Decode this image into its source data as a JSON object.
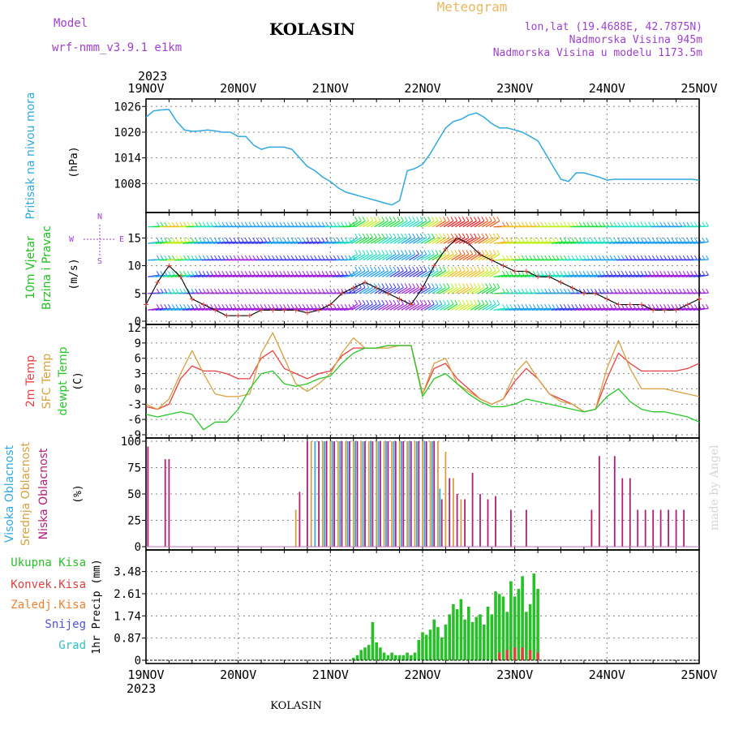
{
  "header": {
    "model_label": "Model",
    "model_name": "wrf-nmm_v3.9.1  e1km",
    "station": "KOLASIN",
    "meteogram": "Meteogram",
    "lonlat": "lon,lat (19.4688E, 42.7875N)",
    "elev": "Nadmorska Visina 945m",
    "elev_model": "Nadmorska Visina u modelu 1173.5m",
    "year": "2023",
    "footer_station": "KOLASIN",
    "watermark": "made by Angel"
  },
  "time_axis": {
    "labels": [
      "19NOV",
      "20NOV",
      "21NOV",
      "22NOV",
      "23NOV",
      "24NOV",
      "25NOV"
    ],
    "hours_range": [
      0,
      144
    ]
  },
  "colors": {
    "pressure": "#30a8e0",
    "t2m": "#e84040",
    "tsfc": "#d8a040",
    "dewpt": "#28c828",
    "low_cloud": "#b0207a",
    "mid_cloud": "#d8a040",
    "high_cloud": "#30a8e0",
    "total_precip": "#28c028",
    "conv_precip": "#e04040",
    "frozen_precip": "#f08030",
    "snow": "#5050e0",
    "graupel": "#30c0c0",
    "wind_label": "#20c020",
    "wind_dir_label": "#a040d0"
  },
  "chart_data": [
    {
      "type": "line",
      "panel": "pressure",
      "ylabel": "Pritisak na nivou mora",
      "yunit": "(hPa)",
      "yticks": [
        "1026",
        "1020",
        "1014",
        "1008"
      ],
      "ylim": [
        1002,
        1027
      ],
      "grid": true,
      "series": [
        {
          "x": [
            0,
            2,
            4,
            6,
            8,
            10,
            12,
            14,
            16,
            18,
            20,
            22,
            24,
            26,
            28,
            30,
            32,
            34,
            36,
            38,
            40,
            42,
            44,
            46,
            48,
            50,
            52,
            54,
            56,
            58,
            60,
            62,
            64,
            66,
            68,
            70,
            72,
            74,
            76,
            78,
            80,
            82,
            84,
            86,
            88,
            90,
            92,
            94,
            96,
            98,
            100,
            102,
            104,
            106,
            108,
            110,
            112,
            114,
            116,
            118,
            120,
            122,
            124,
            126,
            128,
            130,
            132,
            134,
            136,
            138,
            140,
            142,
            144
          ],
          "values": [
            1023.5,
            1025,
            1025.2,
            1025.3,
            1022.5,
            1020.5,
            1020.2,
            1020.3,
            1020.5,
            1020.3,
            1020,
            1020,
            1019,
            1019,
            1017,
            1016,
            1016.5,
            1016.5,
            1016.5,
            1016,
            1014,
            1012,
            1011,
            1009.5,
            1008.5,
            1007,
            1006,
            1005.5,
            1005,
            1004.5,
            1004,
            1003.5,
            1003,
            1004,
            1011,
            1011.5,
            1012.5,
            1015,
            1018,
            1021,
            1022.5,
            1023,
            1024,
            1024.5,
            1023.5,
            1022,
            1021,
            1021,
            1020.5,
            1020,
            1019,
            1018,
            1015,
            1012,
            1009,
            1008.5,
            1010.5,
            1010.5,
            1010,
            1009.5,
            1008.8,
            1009,
            1009,
            1009,
            1009,
            1009,
            1009,
            1009,
            1009,
            1009,
            1009,
            1009,
            1008.8
          ]
        }
      ]
    },
    {
      "type": "line",
      "panel": "wind",
      "ylabel": "10m Vjetar",
      "ylabel2": "Brzina i Pravac",
      "yunit": "(m/s)",
      "yticks": [
        "15",
        "10",
        "5",
        "0"
      ],
      "ylim": [
        0,
        19
      ],
      "grid": true,
      "direction_labels": [
        "N",
        "E",
        "W",
        "S"
      ],
      "series": [
        {
          "name": "wind",
          "x": [
            0,
            3,
            6,
            9,
            12,
            15,
            18,
            21,
            24,
            27,
            30,
            33,
            36,
            39,
            42,
            45,
            48,
            51,
            54,
            57,
            60,
            63,
            66,
            69,
            72,
            75,
            78,
            81,
            84,
            87,
            90,
            93,
            96,
            99,
            102,
            105,
            108,
            111,
            114,
            117,
            120,
            123,
            126,
            129,
            132,
            135,
            138,
            141,
            144
          ],
          "values": [
            3,
            7,
            10,
            8,
            4,
            3,
            2,
            1,
            1,
            1,
            2,
            2,
            2,
            2,
            1.5,
            2,
            3,
            5,
            6,
            7,
            6,
            5,
            4,
            3,
            6,
            10,
            13,
            15,
            14,
            12,
            11,
            10,
            9,
            9,
            8,
            8,
            7,
            6,
            5,
            5,
            4,
            3,
            3,
            3,
            2,
            2,
            2,
            3,
            4
          ]
        }
      ]
    },
    {
      "type": "line",
      "panel": "temperature",
      "ylabel_lines": [
        "2m Temp",
        "SFC Temp",
        "dewpt Temp"
      ],
      "yunit": "(C)",
      "yticks": [
        "12",
        "9",
        "6",
        "3",
        "0",
        "-3",
        "-6",
        "-9"
      ],
      "ylim": [
        -9,
        12
      ],
      "grid": true,
      "series": [
        {
          "name": "2m Temp",
          "x": [
            0,
            3,
            6,
            9,
            12,
            15,
            18,
            21,
            24,
            27,
            30,
            33,
            36,
            39,
            42,
            45,
            48,
            51,
            54,
            57,
            60,
            63,
            66,
            69,
            72,
            75,
            78,
            81,
            84,
            87,
            90,
            93,
            96,
            99,
            102,
            105,
            108,
            111,
            114,
            117,
            120,
            123,
            126,
            129,
            132,
            135,
            138,
            141,
            144
          ],
          "values": [
            -3.5,
            -4,
            -3,
            2,
            4.5,
            3.5,
            3.5,
            3,
            2,
            2,
            6,
            7.5,
            4,
            3,
            2,
            3,
            3.5,
            6.5,
            8,
            8,
            8,
            8.5,
            8.5,
            8.5,
            -1,
            4,
            5,
            2,
            0,
            -2,
            -3,
            -2,
            1.5,
            4,
            2,
            -1,
            -2,
            -3,
            -4.5,
            -4,
            2,
            7,
            5,
            3.5,
            3.5,
            3.5,
            3.5,
            4,
            5
          ]
        },
        {
          "name": "SFC Temp",
          "x": [
            0,
            3,
            6,
            9,
            12,
            15,
            18,
            21,
            24,
            27,
            30,
            33,
            36,
            39,
            42,
            45,
            48,
            51,
            54,
            57,
            60,
            63,
            66,
            69,
            72,
            75,
            78,
            81,
            84,
            87,
            90,
            93,
            96,
            99,
            102,
            105,
            108,
            111,
            114,
            117,
            120,
            123,
            126,
            129,
            132,
            135,
            138,
            141,
            144
          ],
          "values": [
            -3,
            -4,
            -2,
            3,
            7.5,
            3,
            -1,
            -1.5,
            -1.5,
            -1,
            7,
            11,
            6,
            1,
            -0.5,
            1,
            3,
            7,
            10,
            8,
            8,
            8,
            8.5,
            8.5,
            -1,
            5,
            6,
            1,
            -0.5,
            -2,
            -3,
            -2,
            3,
            5.5,
            2,
            -1,
            -2.5,
            -3,
            -4.5,
            -4,
            4,
            9.5,
            4,
            0,
            0,
            0,
            -0.5,
            -1,
            -1.5
          ]
        },
        {
          "name": "dewpt Temp",
          "x": [
            0,
            3,
            6,
            9,
            12,
            15,
            18,
            21,
            24,
            27,
            30,
            33,
            36,
            39,
            42,
            45,
            48,
            51,
            54,
            57,
            60,
            63,
            66,
            69,
            72,
            75,
            78,
            81,
            84,
            87,
            90,
            93,
            96,
            99,
            102,
            105,
            108,
            111,
            114,
            117,
            120,
            123,
            126,
            129,
            132,
            135,
            138,
            141,
            144
          ],
          "values": [
            -5,
            -5.5,
            -5,
            -4.5,
            -5,
            -8,
            -6.5,
            -6.5,
            -4,
            0,
            3,
            3.5,
            1,
            0.5,
            1,
            2,
            2.5,
            5,
            7,
            8,
            8,
            8.5,
            8.5,
            8.5,
            -1.5,
            2,
            3,
            1,
            -1,
            -2.5,
            -3.5,
            -3.5,
            -3,
            -2,
            -2.5,
            -3,
            -3.5,
            -4,
            -4.5,
            -4,
            -1.5,
            0,
            -2.5,
            -4,
            -4.5,
            -4.5,
            -5,
            -5.5,
            -6.5
          ]
        }
      ]
    },
    {
      "type": "bar",
      "panel": "clouds",
      "ylabel_lines": [
        "Visoka Oblacnost",
        "Srednja Oblacnost",
        "Niska Oblacnost"
      ],
      "yunit": "(%)",
      "yticks": [
        "100",
        "75",
        "50",
        "25",
        "0"
      ],
      "ylim": [
        0,
        100
      ],
      "grid": true,
      "series": [
        {
          "name": "Niska Oblacnost",
          "x": [
            0.5,
            5,
            6,
            40,
            42,
            45,
            47,
            49,
            51,
            53,
            55,
            57,
            59,
            61,
            63,
            65,
            67,
            69,
            71,
            73,
            75,
            77,
            79,
            81,
            83,
            85,
            87,
            89,
            91,
            95,
            99,
            116,
            118,
            122,
            124,
            126,
            128,
            130,
            132,
            134,
            136,
            138,
            140
          ],
          "values": [
            95,
            83,
            83,
            52,
            100,
            100,
            100,
            100,
            100,
            100,
            100,
            100,
            100,
            100,
            100,
            100,
            100,
            100,
            100,
            100,
            100,
            45,
            65,
            50,
            45,
            70,
            50,
            45,
            48,
            35,
            35,
            35,
            86,
            86,
            65,
            65,
            35,
            35,
            35,
            35,
            35,
            35,
            35
          ]
        },
        {
          "name": "Srednja Oblacnost",
          "x": [
            39,
            43,
            46,
            48,
            50,
            52,
            54,
            56,
            58,
            60,
            62,
            64,
            66,
            68,
            70,
            72,
            74,
            76,
            78,
            80,
            82
          ],
          "values": [
            35,
            100,
            100,
            100,
            100,
            100,
            100,
            100,
            100,
            100,
            100,
            100,
            100,
            100,
            100,
            100,
            100,
            100,
            90,
            65,
            45
          ]
        },
        {
          "name": "Visoka Oblacnost",
          "x": [
            44,
            46.5,
            48.5,
            50.5,
            52.5,
            54.5,
            56.5,
            58.5,
            60.5,
            62.5,
            64.5,
            66.5,
            68.5,
            70.5,
            72.5,
            74.5,
            76.5
          ],
          "values": [
            100,
            100,
            100,
            100,
            100,
            100,
            100,
            100,
            100,
            100,
            100,
            100,
            100,
            100,
            100,
            100,
            55
          ]
        }
      ]
    },
    {
      "type": "bar",
      "panel": "precip",
      "ylabel": "1hr Precip",
      "yunit": "(mm)",
      "yticks": [
        "3.48",
        "2.61",
        "1.74",
        "0.87",
        "0"
      ],
      "ylim": [
        0,
        4.2
      ],
      "grid": true,
      "legend": [
        "Ukupna  Kisa",
        "Konvek.Kisa",
        "Zaledj.Kisa",
        "Snijeg",
        "Grad"
      ],
      "series": [
        {
          "name": "Ukupna  Kisa",
          "x": [
            54,
            55,
            56,
            57,
            58,
            59,
            60,
            61,
            62,
            63,
            64,
            65,
            66,
            67,
            68,
            69,
            70,
            71,
            72,
            73,
            74,
            75,
            76,
            77,
            78,
            79,
            80,
            81,
            82,
            83,
            84,
            85,
            86,
            87,
            88,
            89,
            90,
            91,
            92,
            93,
            94,
            95,
            96,
            97,
            98,
            99,
            100,
            101,
            102
          ],
          "values": [
            0.1,
            0.2,
            0.4,
            0.5,
            0.6,
            1.5,
            0.7,
            0.5,
            0.3,
            0.2,
            0.3,
            0.2,
            0.2,
            0.2,
            0.3,
            0.2,
            0.3,
            0.8,
            1.1,
            1.0,
            1.2,
            1.6,
            1.3,
            0.9,
            1.4,
            1.8,
            2.2,
            2.0,
            2.4,
            1.6,
            2.1,
            1.5,
            1.7,
            1.8,
            1.4,
            2.1,
            1.8,
            2.7,
            2.6,
            2.5,
            1.9,
            3.1,
            2.5,
            2.8,
            3.3,
            1.9,
            2.2,
            3.4,
            2.8
          ]
        },
        {
          "name": "Konvek.Kisa",
          "x": [
            92,
            94,
            96,
            98,
            100,
            102
          ],
          "values": [
            0.3,
            0.4,
            0.5,
            0.5,
            0.4,
            0.3
          ]
        }
      ]
    }
  ]
}
